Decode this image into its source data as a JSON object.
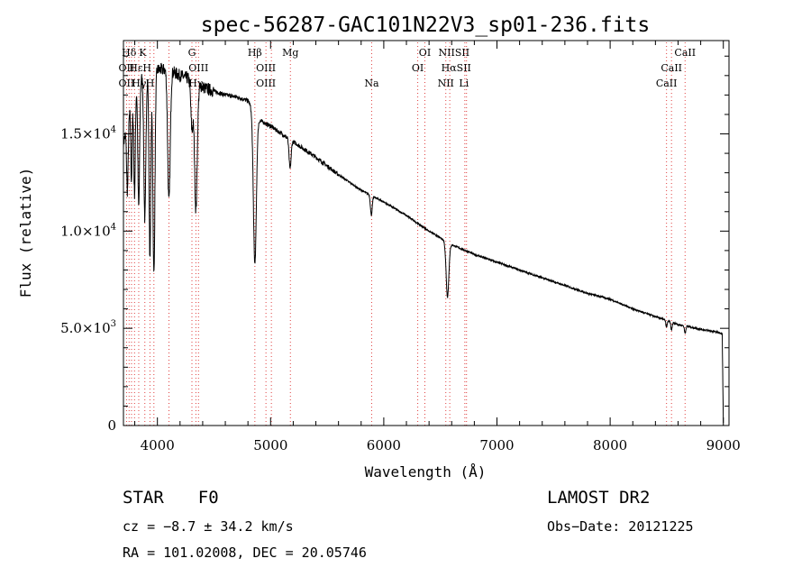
{
  "chart_data": {
    "type": "line",
    "title": "spec-56287-GAC101N22V3_sp01-236.fits",
    "xlabel": "Wavelength (Å)",
    "ylabel": "Flux (relative)",
    "xlim": [
      3700,
      9050
    ],
    "ylim": [
      0,
      19800
    ],
    "x_ticks": [
      4000,
      5000,
      6000,
      7000,
      8000,
      9000
    ],
    "x_tick_labels": [
      "4000",
      "5000",
      "6000",
      "7000",
      "8000",
      "9000"
    ],
    "y_ticks": [
      0,
      5000,
      10000,
      15000
    ],
    "y_tick_labels": [
      {
        "mant": "0",
        "exp": ""
      },
      {
        "mant": "5.0×10",
        "exp": "3"
      },
      {
        "mant": "1.0×10",
        "exp": "4"
      },
      {
        "mant": "1.5×10",
        "exp": "4"
      }
    ],
    "continuum": [
      [
        3700,
        14500
      ],
      [
        3800,
        17500
      ],
      [
        3900,
        18200
      ],
      [
        4000,
        18300
      ],
      [
        4100,
        18300
      ],
      [
        4200,
        18000
      ],
      [
        4300,
        17800
      ],
      [
        4400,
        17400
      ],
      [
        4500,
        17200
      ],
      [
        4600,
        17000
      ],
      [
        4700,
        16900
      ],
      [
        4800,
        16700
      ],
      [
        4900,
        15700
      ],
      [
        5000,
        15400
      ],
      [
        5100,
        15000
      ],
      [
        5200,
        14600
      ],
      [
        5400,
        13800
      ],
      [
        5600,
        12900
      ],
      [
        5800,
        12100
      ],
      [
        6000,
        11500
      ],
      [
        6200,
        10800
      ],
      [
        6400,
        10000
      ],
      [
        6600,
        9300
      ],
      [
        6800,
        8800
      ],
      [
        7000,
        8400
      ],
      [
        7200,
        8000
      ],
      [
        7500,
        7400
      ],
      [
        7800,
        6800
      ],
      [
        8000,
        6500
      ],
      [
        8200,
        6000
      ],
      [
        8400,
        5600
      ],
      [
        8600,
        5200
      ],
      [
        8800,
        4950
      ],
      [
        8950,
        4800
      ],
      [
        8990,
        4700
      ],
      [
        9000,
        100
      ]
    ],
    "absorption": [
      {
        "x": 3735,
        "depth": 3500,
        "w": 7
      },
      {
        "x": 3771,
        "depth": 4000,
        "w": 6
      },
      {
        "x": 3798,
        "depth": 5500,
        "w": 7
      },
      {
        "x": 3835,
        "depth": 6500,
        "w": 8
      },
      {
        "x": 3889,
        "depth": 7500,
        "w": 9
      },
      {
        "x": 3934,
        "depth": 9500,
        "w": 8
      },
      {
        "x": 3969,
        "depth": 10500,
        "w": 9
      },
      {
        "x": 4102,
        "depth": 6800,
        "w": 11
      },
      {
        "x": 4305,
        "depth": 2500,
        "w": 10
      },
      {
        "x": 4340,
        "depth": 6500,
        "w": 12
      },
      {
        "x": 4861,
        "depth": 7800,
        "w": 13
      },
      {
        "x": 5172,
        "depth": 1500,
        "w": 9
      },
      {
        "x": 5890,
        "depth": 1000,
        "w": 8
      },
      {
        "x": 6563,
        "depth": 2800,
        "w": 12
      },
      {
        "x": 8498,
        "depth": 350,
        "w": 6
      },
      {
        "x": 8542,
        "depth": 400,
        "w": 6
      },
      {
        "x": 8662,
        "depth": 380,
        "w": 6
      }
    ],
    "spectral_lines": [
      {
        "name": "Hδ",
        "wave": 3750,
        "row": 0
      },
      {
        "name": "K",
        "wave": 3870,
        "row": 0
      },
      {
        "name": "G",
        "wave": 4305,
        "row": 0
      },
      {
        "name": "Hβ",
        "wave": 4861,
        "row": 0
      },
      {
        "name": "Mg",
        "wave": 5175,
        "row": 0
      },
      {
        "name": "OI",
        "wave": 6363,
        "row": 0
      },
      {
        "name": "NIISII",
        "wave": 6620,
        "row": 0
      },
      {
        "name": "CaII",
        "wave": 8662,
        "row": 0
      },
      {
        "name": "OII",
        "wave": 3727,
        "row": 1
      },
      {
        "name": "Hε",
        "wave": 3811,
        "row": 1
      },
      {
        "name": "H",
        "wave": 3908,
        "row": 1
      },
      {
        "name": "OIII",
        "wave": 4363,
        "row": 1
      },
      {
        "name": "OIII",
        "wave": 4959,
        "row": 1
      },
      {
        "name": "OI",
        "wave": 6300,
        "row": 1
      },
      {
        "name": "HαSII",
        "wave": 6640,
        "row": 1
      },
      {
        "name": "CaII",
        "wave": 8542,
        "row": 1
      },
      {
        "name": "OII",
        "wave": 3727,
        "row": 2
      },
      {
        "name": "Hγ",
        "wave": 3838,
        "row": 2
      },
      {
        "name": "H",
        "wave": 3935,
        "row": 2
      },
      {
        "name": "Hγ",
        "wave": 4340,
        "row": 2
      },
      {
        "name": "OIII",
        "wave": 4959,
        "row": 2
      },
      {
        "name": "Na",
        "wave": 5893,
        "row": 2
      },
      {
        "name": "NII",
        "wave": 6548,
        "row": 2
      },
      {
        "name": "Li",
        "wave": 6708,
        "row": 2
      },
      {
        "name": "CaII",
        "wave": 8498,
        "row": 2
      }
    ],
    "marker_lines": [
      3727,
      3750,
      3771,
      3798,
      3835,
      3889,
      3934,
      3969,
      4102,
      4305,
      4340,
      4363,
      4861,
      4959,
      5007,
      5175,
      5893,
      6300,
      6363,
      6548,
      6583,
      6716,
      6731,
      8498,
      8542,
      8662
    ]
  },
  "info": {
    "class_label": "STAR",
    "subclass": "F0",
    "survey": "LAMOST DR2",
    "cz": "cz = −8.7 ± 34.2 km/s",
    "obs_date": "Obs−Date: 20121225",
    "coords": "RA = 101.02008, DEC =  20.05746"
  }
}
